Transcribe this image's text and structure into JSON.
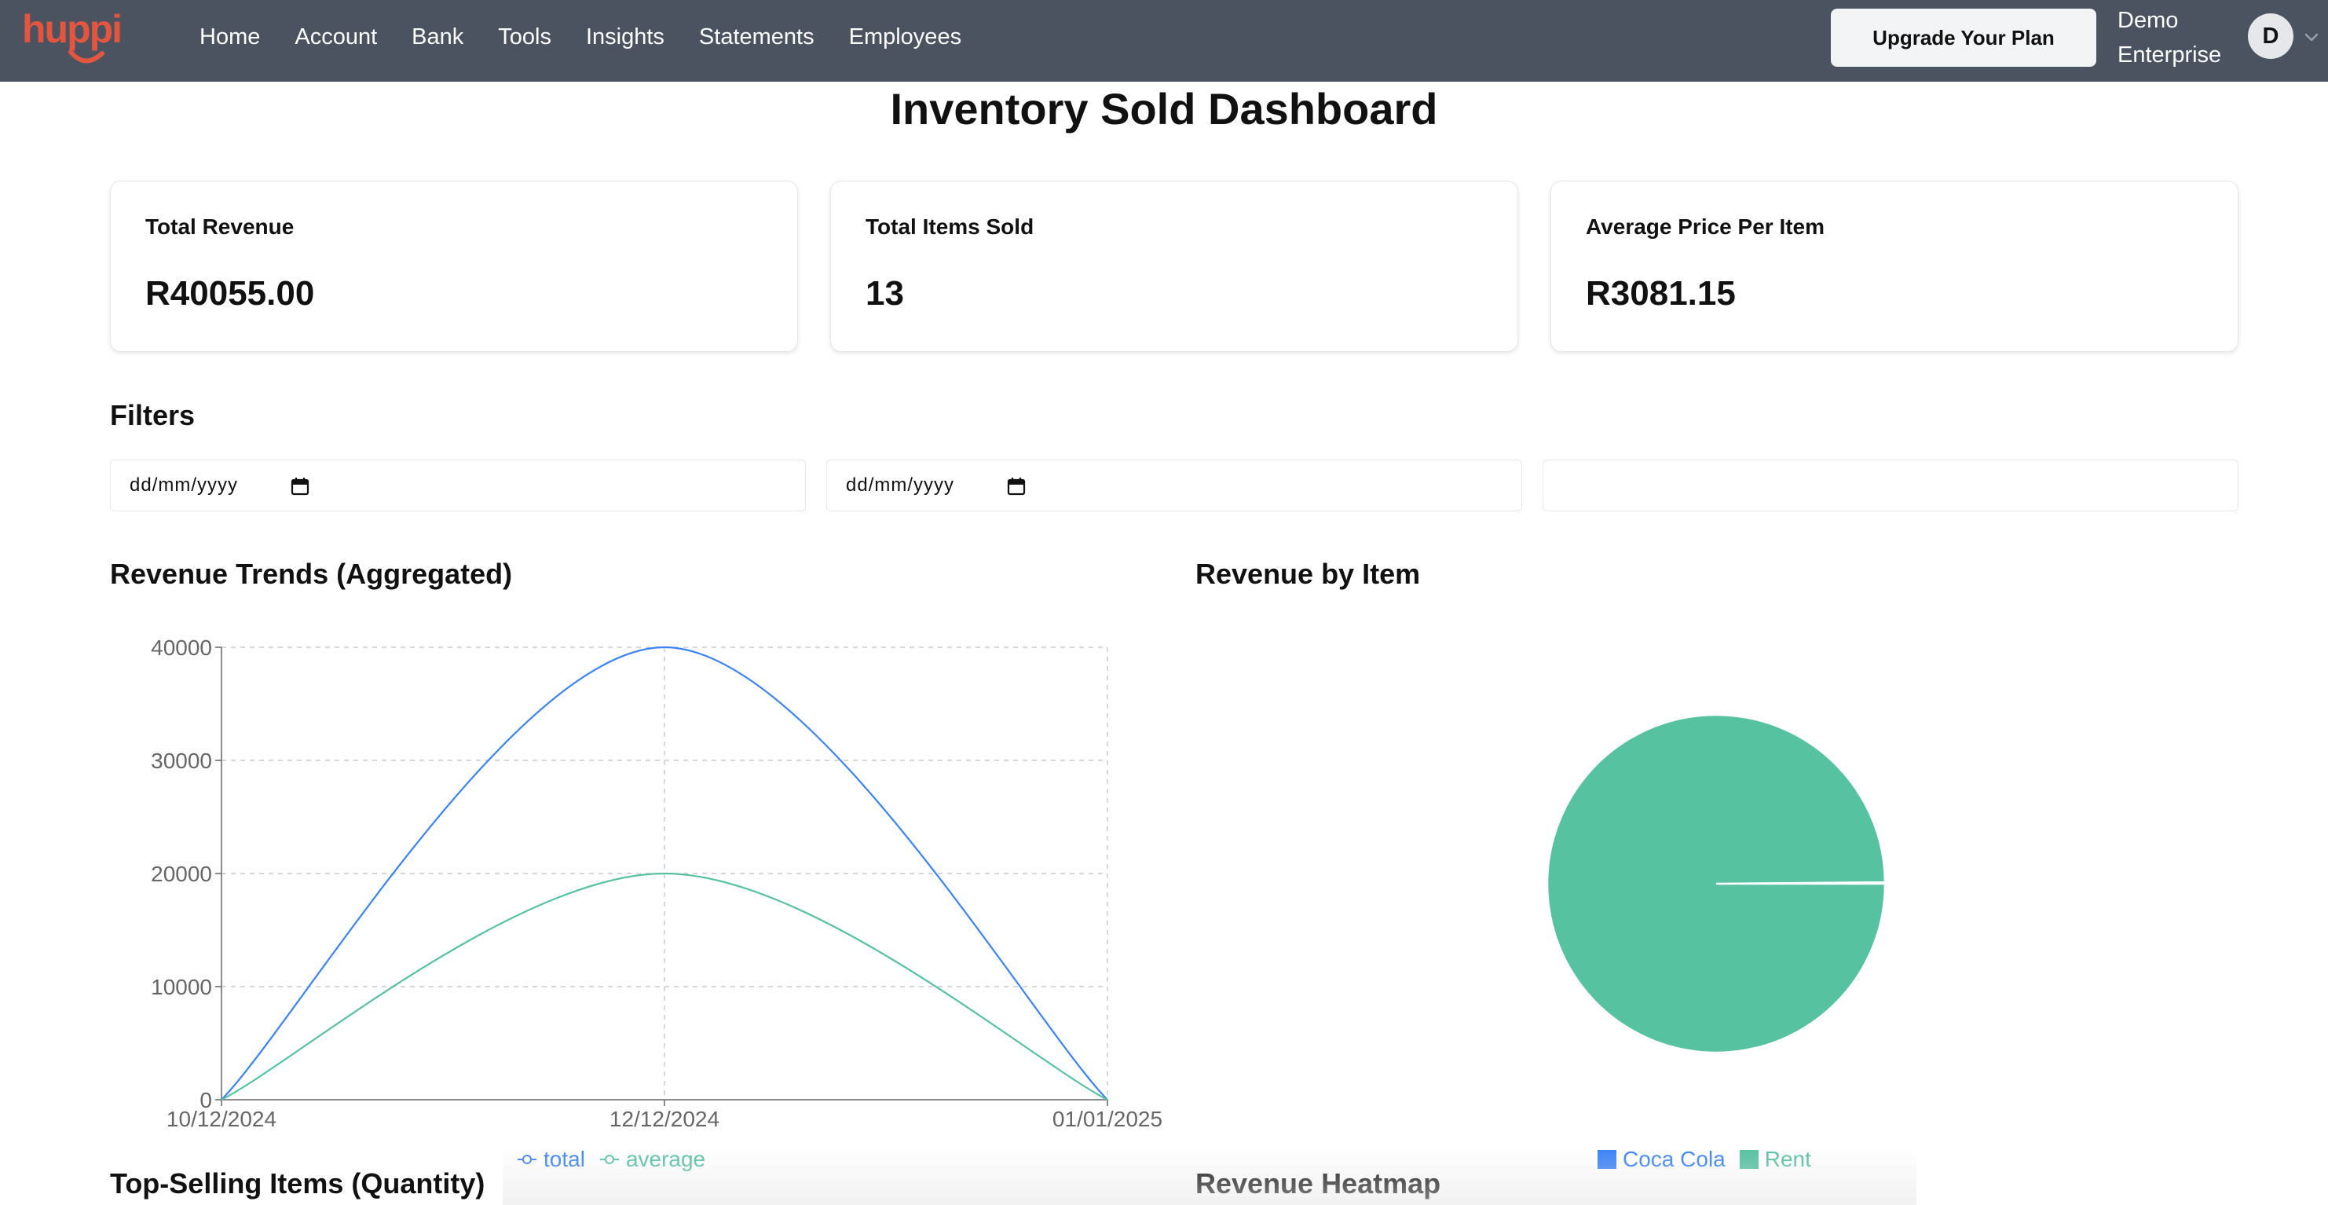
{
  "brand": {
    "logo_text": "huppi",
    "color": "#e2553f"
  },
  "nav": {
    "items": [
      {
        "label": "Home"
      },
      {
        "label": "Account"
      },
      {
        "label": "Bank"
      },
      {
        "label": "Tools"
      },
      {
        "label": "Insights"
      },
      {
        "label": "Statements"
      },
      {
        "label": "Employees"
      }
    ]
  },
  "header": {
    "upgrade_label": "Upgrade Your Plan",
    "company_line1": "Demo",
    "company_line2": "Enterprise",
    "avatar_initial": "D"
  },
  "page": {
    "title": "Inventory Sold Dashboard"
  },
  "stats": [
    {
      "label": "Total Revenue",
      "value": "R40055.00"
    },
    {
      "label": "Total Items Sold",
      "value": "13"
    },
    {
      "label": "Average Price Per Item",
      "value": "R3081.15"
    }
  ],
  "filters": {
    "heading": "Filters",
    "start_date_placeholder": "dd/mm/yyyy",
    "end_date_placeholder": "dd/mm/yyyy",
    "search_value": ""
  },
  "sections": {
    "revenue_trends": "Revenue Trends (Aggregated)",
    "revenue_by_item": "Revenue by Item",
    "top_selling": "Top-Selling Items (Quantity)",
    "heatmap": "Revenue Heatmap"
  },
  "colors": {
    "total": "#3b82f6",
    "average": "#56c2a0",
    "coca_cola": "#3b82f6",
    "rent": "#56c2a0"
  },
  "chart_data": [
    {
      "type": "line",
      "title": "Revenue Trends (Aggregated)",
      "x": [
        "10/12/2024",
        "12/12/2024",
        "01/01/2025"
      ],
      "ylim": [
        0,
        40000
      ],
      "yticks": [
        0,
        10000,
        20000,
        30000,
        40000
      ],
      "grid": true,
      "legend_position": "bottom",
      "series": [
        {
          "name": "total",
          "values": [
            0,
            40000,
            0
          ]
        },
        {
          "name": "average",
          "values": [
            0,
            20000,
            0
          ]
        }
      ]
    },
    {
      "type": "pie",
      "title": "Revenue by Item",
      "legend_position": "bottom",
      "slices": [
        {
          "label": "Coca Cola",
          "value": 55
        },
        {
          "label": "Rent",
          "value": 40000
        }
      ]
    }
  ]
}
